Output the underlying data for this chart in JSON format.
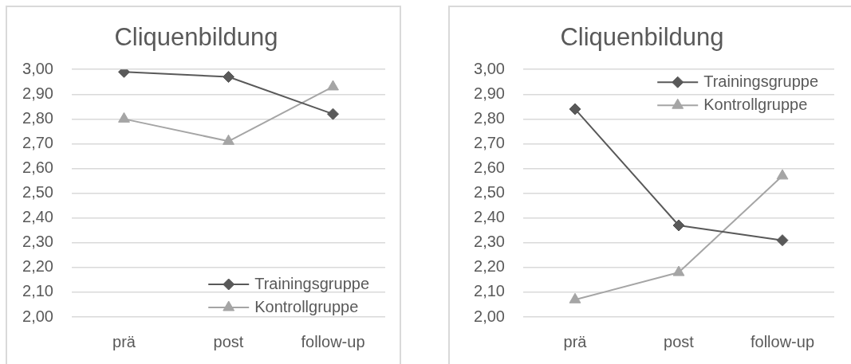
{
  "chart_data": [
    {
      "type": "line",
      "title": "Cliquenbildung",
      "categories": [
        "prä",
        "post",
        "follow-up"
      ],
      "series": [
        {
          "name": "Trainingsgruppe",
          "color": "#595959",
          "marker": "diamond",
          "values": [
            2.99,
            2.97,
            2.82
          ]
        },
        {
          "name": "Kontrollgruppe",
          "color": "#a5a5a5",
          "marker": "triangle",
          "values": [
            2.8,
            2.71,
            2.93
          ]
        }
      ],
      "ylim": [
        2,
        3
      ],
      "yticks": [
        {
          "value": 2,
          "label": "2,00"
        },
        {
          "value": 2.1,
          "label": "2,10"
        },
        {
          "value": 2.2,
          "label": "2,20"
        },
        {
          "value": 2.3,
          "label": "2,30"
        },
        {
          "value": 2.4,
          "label": "2,40"
        },
        {
          "value": 2.5,
          "label": "2,50"
        },
        {
          "value": 2.6,
          "label": "2,60"
        },
        {
          "value": 2.7,
          "label": "2,70"
        },
        {
          "value": 2.8,
          "label": "2,80"
        },
        {
          "value": 2.9,
          "label": "2,90"
        },
        {
          "value": 3,
          "label": "3,00"
        }
      ],
      "grid": "y",
      "legend": "bottom right"
    },
    {
      "type": "line",
      "title": "Cliquenbildung",
      "categories": [
        "prä",
        "post",
        "follow-up"
      ],
      "series": [
        {
          "name": "Trainingsgruppe",
          "color": "#595959",
          "marker": "diamond",
          "values": [
            2.84,
            2.37,
            2.31
          ]
        },
        {
          "name": "Kontrollgruppe",
          "color": "#a5a5a5",
          "marker": "triangle",
          "values": [
            2.07,
            2.18,
            2.57
          ]
        }
      ],
      "ylim": [
        2,
        3
      ],
      "yticks": [
        {
          "value": 2,
          "label": "2,00"
        },
        {
          "value": 2.1,
          "label": "2,10"
        },
        {
          "value": 2.2,
          "label": "2,20"
        },
        {
          "value": 2.3,
          "label": "2,30"
        },
        {
          "value": 2.4,
          "label": "2,40"
        },
        {
          "value": 2.5,
          "label": "2,50"
        },
        {
          "value": 2.6,
          "label": "2,60"
        },
        {
          "value": 2.7,
          "label": "2,70"
        },
        {
          "value": 2.8,
          "label": "2,80"
        },
        {
          "value": 2.9,
          "label": "2,90"
        },
        {
          "value": 3,
          "label": "3,00"
        }
      ],
      "grid": "y",
      "legend": "top right"
    }
  ]
}
